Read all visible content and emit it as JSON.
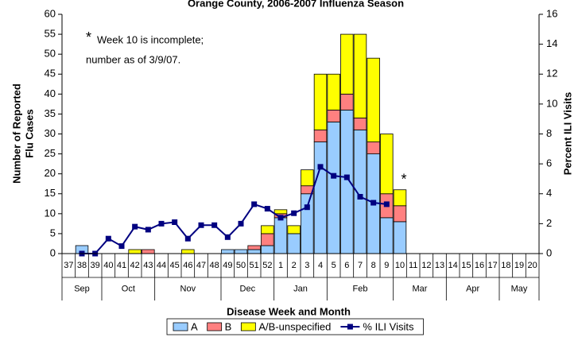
{
  "chart_data": {
    "type": "bar",
    "stacked": true,
    "title": "Orange County, 2006-2007 Influenza Season",
    "x_label": "Disease Week and Month",
    "y_label": [
      "Number of Reported",
      "Flu Cases"
    ],
    "y2_label": "Percent ILI Visits",
    "annotations": {
      "marker": "*",
      "note": [
        "Week 10 is incomplete;",
        "number as of 3/9/07."
      ],
      "marked_category": 25
    },
    "categories": [
      "37",
      "38",
      "39",
      "40",
      "41",
      "42",
      "43",
      "44",
      "45",
      "46",
      "47",
      "48",
      "49",
      "50",
      "51",
      "52",
      "1",
      "2",
      "3",
      "4",
      "5",
      "6",
      "7",
      "8",
      "9",
      "10",
      "11",
      "12",
      "13",
      "14",
      "15",
      "16",
      "17",
      "18",
      "19",
      "20"
    ],
    "x_groups": [
      {
        "label": "Sep",
        "first": 0,
        "last": 2
      },
      {
        "label": "Oct",
        "first": 3,
        "last": 6
      },
      {
        "label": "Nov",
        "first": 7,
        "last": 11
      },
      {
        "label": "Dec",
        "first": 12,
        "last": 15
      },
      {
        "label": "Jan",
        "first": 16,
        "last": 19
      },
      {
        "label": "Feb",
        "first": 20,
        "last": 24
      },
      {
        "label": "Mar",
        "first": 25,
        "last": 28
      },
      {
        "label": "Apr",
        "first": 29,
        "last": 32
      },
      {
        "label": "May",
        "first": 33,
        "last": 35
      }
    ],
    "series": [
      {
        "name": "A",
        "color": "#99ccff",
        "type": "bar",
        "values": [
          0,
          2,
          0,
          0,
          0,
          0,
          0,
          0,
          0,
          0,
          0,
          0,
          1,
          1,
          1,
          2,
          9,
          5,
          15,
          28,
          33,
          36,
          31,
          25,
          9,
          8,
          0,
          0,
          0,
          0,
          0,
          0,
          0,
          0,
          0,
          0
        ]
      },
      {
        "name": "B",
        "color": "#ff8080",
        "type": "bar",
        "values": [
          0,
          0,
          0,
          0,
          0,
          0,
          1,
          0,
          0,
          0,
          0,
          0,
          0,
          0,
          1,
          3,
          1,
          0,
          2,
          3,
          3,
          4,
          3,
          3,
          6,
          4,
          0,
          0,
          0,
          0,
          0,
          0,
          0,
          0,
          0,
          0
        ]
      },
      {
        "name": "A/B-unspecified",
        "color": "#ffff00",
        "type": "bar",
        "values": [
          0,
          0,
          0,
          0,
          0,
          1,
          0,
          0,
          0,
          1,
          0,
          0,
          0,
          0,
          0,
          2,
          1,
          2,
          4,
          14,
          9,
          15,
          21,
          21,
          15,
          4,
          0,
          0,
          0,
          0,
          0,
          0,
          0,
          0,
          0,
          0
        ]
      },
      {
        "name": "% ILI Visits",
        "color": "#000080",
        "type": "line",
        "axis": "y2",
        "values": [
          null,
          0,
          0,
          1.0,
          0.5,
          1.8,
          1.6,
          2.0,
          2.1,
          1.0,
          1.9,
          1.9,
          1.1,
          2.0,
          3.3,
          3.0,
          2.4,
          2.7,
          3.1,
          5.8,
          5.2,
          5.1,
          3.8,
          3.4,
          3.3,
          null,
          null,
          null,
          null,
          null,
          null,
          null,
          null,
          null,
          null,
          null
        ]
      }
    ],
    "ylim": [
      0,
      60
    ],
    "yticks": [
      0,
      5,
      10,
      15,
      20,
      25,
      30,
      35,
      40,
      45,
      50,
      55,
      60
    ],
    "y2lim": [
      0,
      16
    ],
    "y2ticks": [
      0,
      2,
      4,
      6,
      8,
      10,
      12,
      14,
      16
    ],
    "grid": false,
    "legend": "bottom"
  }
}
